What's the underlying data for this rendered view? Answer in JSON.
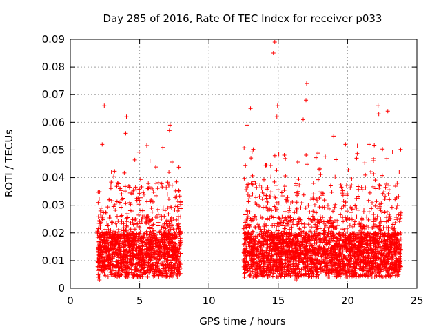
{
  "chart_data": {
    "type": "scatter",
    "title": "Day 285 of 2016, Rate Of TEC Index for receiver p033",
    "xlabel": "GPS time / hours",
    "ylabel": "ROTI / TECUs",
    "xlim": [
      0,
      25
    ],
    "ylim": [
      0,
      0.09
    ],
    "x_ticks": [
      0,
      5,
      10,
      15,
      20,
      25
    ],
    "x_tick_labels": [
      "0",
      "5",
      "10",
      "15",
      "20",
      "25"
    ],
    "y_ticks": [
      0,
      0.01,
      0.02,
      0.03,
      0.04,
      0.05,
      0.06,
      0.07,
      0.08,
      0.09
    ],
    "y_tick_labels": [
      "0",
      "0.01",
      "0.02",
      "0.03",
      "0.04",
      "0.05",
      "0.06",
      "0.07",
      "0.08",
      "0.09"
    ],
    "grid": true,
    "marker": "+",
    "color": "#ff0000",
    "segments": [
      {
        "x_start": 1.95,
        "x_end": 8.0
      },
      {
        "x_start": 12.5,
        "x_end": 23.85
      }
    ],
    "notable_points": [
      {
        "x": 2.45,
        "y": 0.066
      },
      {
        "x": 2.3,
        "y": 0.052
      },
      {
        "x": 4.05,
        "y": 0.062
      },
      {
        "x": 4.0,
        "y": 0.056
      },
      {
        "x": 5.75,
        "y": 0.046
      },
      {
        "x": 7.2,
        "y": 0.059
      },
      {
        "x": 7.15,
        "y": 0.057
      },
      {
        "x": 13.0,
        "y": 0.065
      },
      {
        "x": 12.75,
        "y": 0.059
      },
      {
        "x": 14.75,
        "y": 0.089
      },
      {
        "x": 14.65,
        "y": 0.085
      },
      {
        "x": 14.95,
        "y": 0.066
      },
      {
        "x": 14.9,
        "y": 0.062
      },
      {
        "x": 17.05,
        "y": 0.074
      },
      {
        "x": 17.0,
        "y": 0.068
      },
      {
        "x": 16.8,
        "y": 0.061
      },
      {
        "x": 19.0,
        "y": 0.055
      },
      {
        "x": 22.2,
        "y": 0.066
      },
      {
        "x": 22.25,
        "y": 0.063
      },
      {
        "x": 22.9,
        "y": 0.064
      },
      {
        "x": 19.85,
        "y": 0.052
      },
      {
        "x": 21.55,
        "y": 0.052
      },
      {
        "x": 2.1,
        "y": 0.003
      },
      {
        "x": 16.3,
        "y": 0.003
      }
    ]
  }
}
